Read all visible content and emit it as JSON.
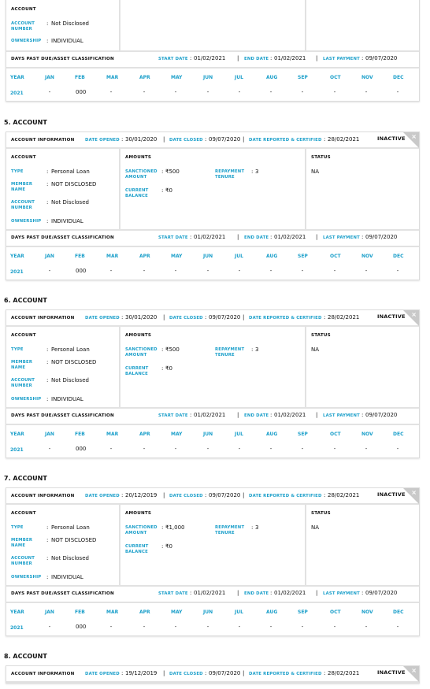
{
  "labels": {
    "account_information": "ACCOUNT INFORMATION",
    "date_opened": "DATE OPENED",
    "date_closed": "DATE CLOSED",
    "date_reported": "DATE REPORTED & CERTIFIED",
    "colon": ":",
    "divider": "|",
    "account": "ACCOUNT",
    "amounts": "AMOUNTS",
    "status": "STATUS",
    "type": "TYPE",
    "member_name": "MEMBER NAME",
    "account_number": "ACCOUNT NUMBER",
    "ownership": "OWNERSHIP",
    "sanctioned_amount": "SANCTIONED AMOUNT",
    "current_balance": "CURRENT BALANCE",
    "repayment_tenure": "REPAYMENT TENURE",
    "dpd_title": "DAYS PAST DUE/ASSET CLASSIFICATION",
    "start_date": "START DATE",
    "end_date": "END DATE",
    "last_payment": "LAST PAYMENT",
    "year": "YEAR",
    "months": [
      "JAN",
      "FEB",
      "MAR",
      "APR",
      "MAY",
      "JUN",
      "JUL",
      "AUG",
      "SEP",
      "OCT",
      "NOV",
      "DEC"
    ]
  },
  "partial_account": {
    "account_number": "Not Disclosed",
    "ownership": "INDIVIDUAL",
    "dpd": {
      "start_date": "01/02/2021",
      "end_date": "01/02/2021",
      "last_payment": "09/07/2020",
      "rows": [
        {
          "year": "2021",
          "values": [
            "-",
            "000",
            "-",
            "-",
            "-",
            "-",
            "-",
            "-",
            "-",
            "-",
            "-",
            "-"
          ]
        }
      ]
    }
  },
  "accounts": [
    {
      "heading": "5. ACCOUNT",
      "status_badge": "INACTIVE",
      "date_opened": "30/01/2020",
      "date_closed": "09/07/2020",
      "date_reported": "28/02/2021",
      "type": "Personal Loan",
      "member_name": "NOT DISCLOSED",
      "account_number": "Not Disclosed",
      "ownership": "INDIVIDUAL",
      "sanctioned_amount": "₹500",
      "current_balance": "₹0",
      "repayment_tenure": "3",
      "status": "NA",
      "dpd": {
        "start_date": "01/02/2021",
        "end_date": "01/02/2021",
        "last_payment": "09/07/2020",
        "rows": [
          {
            "year": "2021",
            "values": [
              "-",
              "000",
              "-",
              "-",
              "-",
              "-",
              "-",
              "-",
              "-",
              "-",
              "-",
              "-"
            ]
          }
        ]
      }
    },
    {
      "heading": "6. ACCOUNT",
      "status_badge": "INACTIVE",
      "date_opened": "30/01/2020",
      "date_closed": "09/07/2020",
      "date_reported": "28/02/2021",
      "type": "Personal Loan",
      "member_name": "NOT DISCLOSED",
      "account_number": "Not Disclosed",
      "ownership": "INDIVIDUAL",
      "sanctioned_amount": "₹500",
      "current_balance": "₹0",
      "repayment_tenure": "3",
      "status": "NA",
      "dpd": {
        "start_date": "01/02/2021",
        "end_date": "01/02/2021",
        "last_payment": "09/07/2020",
        "rows": [
          {
            "year": "2021",
            "values": [
              "-",
              "000",
              "-",
              "-",
              "-",
              "-",
              "-",
              "-",
              "-",
              "-",
              "-",
              "-"
            ]
          }
        ]
      }
    },
    {
      "heading": "7. ACCOUNT",
      "status_badge": "INACTIVE",
      "date_opened": "20/12/2019",
      "date_closed": "09/07/2020",
      "date_reported": "28/02/2021",
      "type": "Personal Loan",
      "member_name": "NOT DISCLOSED",
      "account_number": "Not Disclosed",
      "ownership": "INDIVIDUAL",
      "sanctioned_amount": "₹1,000",
      "current_balance": "₹0",
      "repayment_tenure": "3",
      "status": "NA",
      "dpd": {
        "start_date": "01/02/2021",
        "end_date": "01/02/2021",
        "last_payment": "09/07/2020",
        "rows": [
          {
            "year": "2021",
            "values": [
              "-",
              "000",
              "-",
              "-",
              "-",
              "-",
              "-",
              "-",
              "-",
              "-",
              "-",
              "-"
            ]
          }
        ]
      }
    },
    {
      "heading": "8. ACCOUNT",
      "status_badge": "INACTIVE",
      "date_opened": "19/12/2019",
      "date_closed": "09/07/2020",
      "date_reported": "28/02/2021"
    }
  ]
}
